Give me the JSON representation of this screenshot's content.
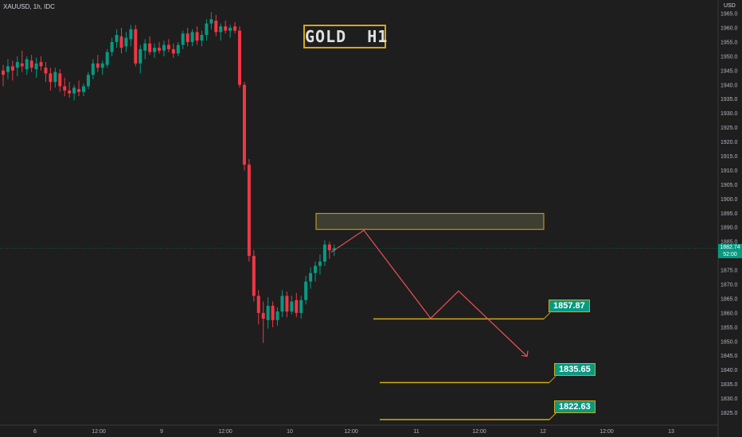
{
  "symbol": "XAUUSD, 1h, IDC",
  "title": "GOLD  H1",
  "unit_label": "USD",
  "current_price": "1882.74",
  "countdown": "52:00",
  "colors": {
    "up": "#089981",
    "down": "#f23645",
    "level": "#d4a91a",
    "path": "#f2505a"
  },
  "chart_data": {
    "type": "candlestick",
    "title": "GOLD  H1",
    "ylim": [
      1822,
      1966
    ],
    "y_ticks": [
      1825,
      1830,
      1835,
      1840,
      1845,
      1850,
      1855,
      1860,
      1865,
      1870,
      1875,
      1880,
      1885,
      1890,
      1895,
      1900,
      1905,
      1910,
      1915,
      1920,
      1925,
      1930,
      1935,
      1940,
      1945,
      1950,
      1955,
      1960,
      1965
    ],
    "x_ticks": [
      "6",
      "12:00",
      "9",
      "12:00",
      "10",
      "12:00",
      "11",
      "12:00",
      "12",
      "12:00",
      "13"
    ],
    "grid": false,
    "levels": [
      {
        "label": "1857.87",
        "value": 1857.9
      },
      {
        "label": "1835.65",
        "value": 1835.6
      },
      {
        "label": "1822.63",
        "value": 1822.6
      }
    ],
    "zone": {
      "low": 1889.3,
      "high": 1894.9
    },
    "projection": [
      1881.3,
      1889.0,
      1858.1,
      1867.7,
      1844.8
    ],
    "candles": [
      {
        "o": 1945.0,
        "h": 1947.0,
        "l": 1939.5,
        "c": 1943.5
      },
      {
        "o": 1944.5,
        "h": 1949.0,
        "l": 1942.0,
        "c": 1946.5
      },
      {
        "o": 1946.5,
        "h": 1948.5,
        "l": 1941.5,
        "c": 1945.0
      },
      {
        "o": 1946.0,
        "h": 1950.0,
        "l": 1943.0,
        "c": 1948.0
      },
      {
        "o": 1947.5,
        "h": 1952.0,
        "l": 1944.5,
        "c": 1946.5
      },
      {
        "o": 1945.5,
        "h": 1950.0,
        "l": 1943.5,
        "c": 1949.0
      },
      {
        "o": 1948.5,
        "h": 1950.5,
        "l": 1944.5,
        "c": 1946.0
      },
      {
        "o": 1945.5,
        "h": 1949.5,
        "l": 1942.5,
        "c": 1947.5
      },
      {
        "o": 1948.0,
        "h": 1950.0,
        "l": 1945.0,
        "c": 1946.5
      },
      {
        "o": 1946.0,
        "h": 1948.0,
        "l": 1941.0,
        "c": 1944.0
      },
      {
        "o": 1944.0,
        "h": 1946.0,
        "l": 1938.0,
        "c": 1941.0
      },
      {
        "o": 1941.0,
        "h": 1946.0,
        "l": 1939.0,
        "c": 1944.5
      },
      {
        "o": 1944.0,
        "h": 1945.5,
        "l": 1937.5,
        "c": 1939.5
      },
      {
        "o": 1939.5,
        "h": 1942.5,
        "l": 1936.0,
        "c": 1938.0
      },
      {
        "o": 1938.0,
        "h": 1941.0,
        "l": 1935.5,
        "c": 1937.0
      },
      {
        "o": 1937.0,
        "h": 1940.0,
        "l": 1934.5,
        "c": 1939.0
      },
      {
        "o": 1938.5,
        "h": 1941.5,
        "l": 1936.0,
        "c": 1937.5
      },
      {
        "o": 1937.5,
        "h": 1940.5,
        "l": 1936.0,
        "c": 1939.5
      },
      {
        "o": 1939.5,
        "h": 1944.5,
        "l": 1938.5,
        "c": 1943.5
      },
      {
        "o": 1943.5,
        "h": 1949.0,
        "l": 1942.0,
        "c": 1947.5
      },
      {
        "o": 1947.5,
        "h": 1950.5,
        "l": 1944.5,
        "c": 1946.0
      },
      {
        "o": 1946.0,
        "h": 1948.5,
        "l": 1943.5,
        "c": 1947.5
      },
      {
        "o": 1947.0,
        "h": 1952.5,
        "l": 1946.0,
        "c": 1951.5
      },
      {
        "o": 1951.5,
        "h": 1956.5,
        "l": 1950.0,
        "c": 1955.0
      },
      {
        "o": 1955.0,
        "h": 1959.5,
        "l": 1953.0,
        "c": 1957.5
      },
      {
        "o": 1957.0,
        "h": 1960.0,
        "l": 1951.0,
        "c": 1953.0
      },
      {
        "o": 1953.5,
        "h": 1958.5,
        "l": 1951.5,
        "c": 1956.5
      },
      {
        "o": 1956.0,
        "h": 1961.0,
        "l": 1953.5,
        "c": 1959.5
      },
      {
        "o": 1959.5,
        "h": 1961.0,
        "l": 1946.5,
        "c": 1947.5
      },
      {
        "o": 1947.5,
        "h": 1954.0,
        "l": 1944.0,
        "c": 1952.5
      },
      {
        "o": 1952.0,
        "h": 1956.0,
        "l": 1949.0,
        "c": 1954.5
      },
      {
        "o": 1954.5,
        "h": 1957.0,
        "l": 1950.5,
        "c": 1951.5
      },
      {
        "o": 1951.5,
        "h": 1954.5,
        "l": 1949.5,
        "c": 1953.0
      },
      {
        "o": 1953.0,
        "h": 1955.0,
        "l": 1951.0,
        "c": 1952.0
      },
      {
        "o": 1952.0,
        "h": 1955.5,
        "l": 1950.0,
        "c": 1954.0
      },
      {
        "o": 1954.0,
        "h": 1956.0,
        "l": 1951.5,
        "c": 1952.5
      },
      {
        "o": 1952.5,
        "h": 1954.5,
        "l": 1949.5,
        "c": 1951.0
      },
      {
        "o": 1951.0,
        "h": 1955.0,
        "l": 1950.0,
        "c": 1954.0
      },
      {
        "o": 1954.0,
        "h": 1959.0,
        "l": 1952.5,
        "c": 1958.0
      },
      {
        "o": 1958.0,
        "h": 1960.0,
        "l": 1953.5,
        "c": 1955.0
      },
      {
        "o": 1955.0,
        "h": 1959.5,
        "l": 1953.5,
        "c": 1958.5
      },
      {
        "o": 1958.5,
        "h": 1960.5,
        "l": 1954.0,
        "c": 1955.5
      },
      {
        "o": 1955.5,
        "h": 1959.0,
        "l": 1953.5,
        "c": 1957.5
      },
      {
        "o": 1957.5,
        "h": 1963.0,
        "l": 1955.5,
        "c": 1961.5
      },
      {
        "o": 1961.5,
        "h": 1965.5,
        "l": 1959.5,
        "c": 1963.0
      },
      {
        "o": 1962.5,
        "h": 1964.5,
        "l": 1957.0,
        "c": 1958.5
      },
      {
        "o": 1958.5,
        "h": 1961.5,
        "l": 1955.5,
        "c": 1960.5
      },
      {
        "o": 1960.5,
        "h": 1962.5,
        "l": 1958.0,
        "c": 1959.0
      },
      {
        "o": 1959.0,
        "h": 1961.0,
        "l": 1956.5,
        "c": 1960.0
      },
      {
        "o": 1960.5,
        "h": 1962.0,
        "l": 1958.0,
        "c": 1959.0
      },
      {
        "o": 1959.0,
        "h": 1960.5,
        "l": 1939.0,
        "c": 1940.0
      },
      {
        "o": 1940.0,
        "h": 1941.0,
        "l": 1910.0,
        "c": 1912.0
      },
      {
        "o": 1912.0,
        "h": 1914.0,
        "l": 1878.0,
        "c": 1880.0
      },
      {
        "o": 1880.0,
        "h": 1882.0,
        "l": 1864.0,
        "c": 1866.0
      },
      {
        "o": 1866.0,
        "h": 1868.0,
        "l": 1856.0,
        "c": 1860.0
      },
      {
        "o": 1860.0,
        "h": 1864.0,
        "l": 1849.5,
        "c": 1858.0
      },
      {
        "o": 1857.5,
        "h": 1865.5,
        "l": 1854.5,
        "c": 1862.5
      },
      {
        "o": 1862.5,
        "h": 1864.0,
        "l": 1855.0,
        "c": 1857.5
      },
      {
        "o": 1857.5,
        "h": 1862.0,
        "l": 1855.5,
        "c": 1860.5
      },
      {
        "o": 1860.5,
        "h": 1868.0,
        "l": 1858.5,
        "c": 1866.0
      },
      {
        "o": 1866.0,
        "h": 1867.5,
        "l": 1858.5,
        "c": 1860.5
      },
      {
        "o": 1860.5,
        "h": 1866.0,
        "l": 1859.5,
        "c": 1864.0
      },
      {
        "o": 1864.5,
        "h": 1867.0,
        "l": 1858.5,
        "c": 1860.0
      },
      {
        "o": 1860.0,
        "h": 1866.0,
        "l": 1858.0,
        "c": 1864.5
      },
      {
        "o": 1864.5,
        "h": 1873.0,
        "l": 1863.0,
        "c": 1871.0
      },
      {
        "o": 1871.0,
        "h": 1876.0,
        "l": 1868.5,
        "c": 1874.0
      },
      {
        "o": 1874.0,
        "h": 1878.0,
        "l": 1871.0,
        "c": 1876.5
      },
      {
        "o": 1876.5,
        "h": 1880.5,
        "l": 1873.5,
        "c": 1878.0
      },
      {
        "o": 1878.0,
        "h": 1885.5,
        "l": 1876.5,
        "c": 1884.0
      },
      {
        "o": 1884.0,
        "h": 1885.0,
        "l": 1879.0,
        "c": 1882.0
      },
      {
        "o": 1882.0,
        "h": 1884.0,
        "l": 1880.0,
        "c": 1882.7
      }
    ]
  }
}
